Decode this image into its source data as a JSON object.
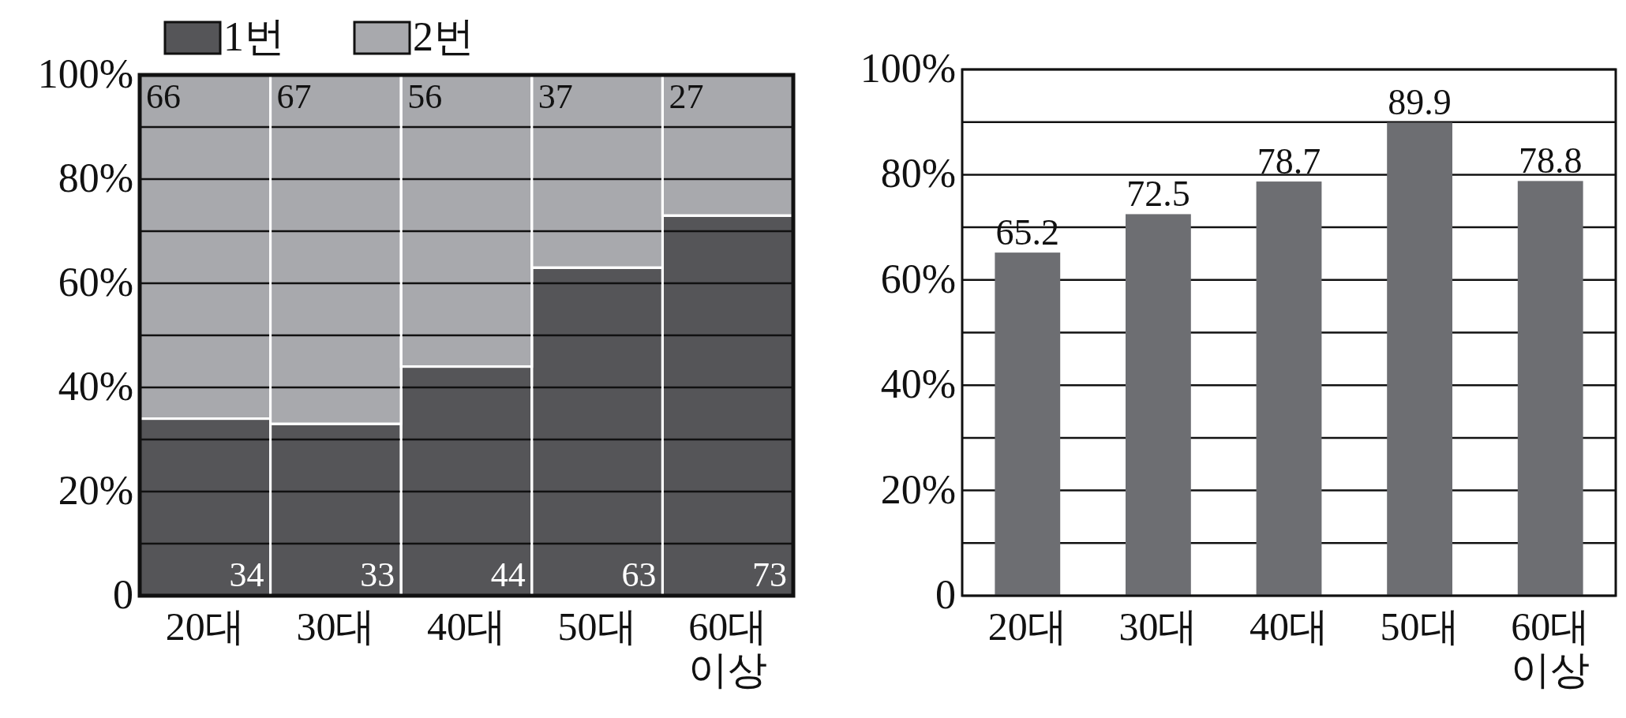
{
  "chart_data": [
    {
      "type": "bar",
      "stacked": true,
      "categories": [
        "20대",
        "30대",
        "40대",
        "50대",
        "60대\n이상"
      ],
      "series": [
        {
          "name": "1번",
          "color": "#555558",
          "values": [
            34,
            33,
            44,
            63,
            73
          ]
        },
        {
          "name": "2번",
          "color": "#a8a9ad",
          "values": [
            66,
            67,
            56,
            37,
            27
          ]
        }
      ],
      "ylim": [
        0,
        100
      ],
      "yticks": [
        {
          "value": 0,
          "label": "0"
        },
        {
          "value": 10,
          "label": null
        },
        {
          "value": 20,
          "label": "20%"
        },
        {
          "value": 30,
          "label": null
        },
        {
          "value": 40,
          "label": "40%"
        },
        {
          "value": 50,
          "label": null
        },
        {
          "value": 60,
          "label": "60%"
        },
        {
          "value": 70,
          "label": null
        },
        {
          "value": 80,
          "label": "80%"
        },
        {
          "value": 90,
          "label": null
        },
        {
          "value": 100,
          "label": "100%"
        }
      ],
      "grid": "y",
      "legend": "top left",
      "data_labels": true
    },
    {
      "type": "bar",
      "categories": [
        "20대",
        "30대",
        "40대",
        "50대",
        "60대\n이상"
      ],
      "color": "#6d6e72",
      "values": [
        65.2,
        72.5,
        78.7,
        89.9,
        78.8
      ],
      "ylim": [
        0,
        100
      ],
      "yticks": [
        {
          "value": 0,
          "label": "0"
        },
        {
          "value": 10,
          "label": null
        },
        {
          "value": 20,
          "label": "20%"
        },
        {
          "value": 30,
          "label": null
        },
        {
          "value": 40,
          "label": "40%"
        },
        {
          "value": 50,
          "label": null
        },
        {
          "value": 60,
          "label": "60%"
        },
        {
          "value": 70,
          "label": null
        },
        {
          "value": 80,
          "label": "80%"
        },
        {
          "value": 90,
          "label": null
        },
        {
          "value": 100,
          "label": "100%"
        }
      ],
      "grid": "y",
      "data_labels": true
    }
  ]
}
